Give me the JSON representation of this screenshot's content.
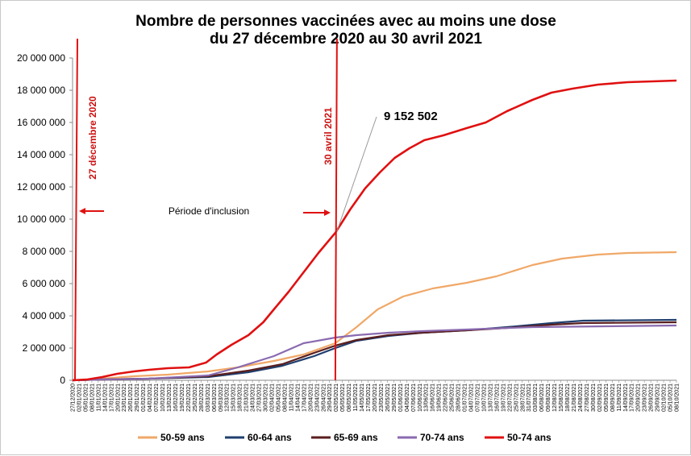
{
  "chart_data": {
    "type": "line",
    "title_line1": "Nombre de personnes vaccinées avec au moins une dose",
    "title_line2": "du 27 décembre 2020 au 30 avril 2021",
    "xlabel": "",
    "ylabel": "",
    "ylim": [
      0,
      20000000
    ],
    "yticks": [
      0,
      2000000,
      4000000,
      6000000,
      8000000,
      10000000,
      12000000,
      14000000,
      16000000,
      18000000,
      20000000
    ],
    "ytick_labels": [
      "0",
      "2 000 000",
      "4 000 000",
      "6 000 000",
      "8 000 000",
      "10 000 000",
      "12 000 000",
      "14 000 000",
      "16 000 000",
      "18 000 000",
      "20 000 000"
    ],
    "x_start": "2020-12-27",
    "x_end": "2021-10-08",
    "x_tick_labels": [
      "27/12/2020",
      "02/01/2021",
      "05/01/2021",
      "08/01/2021",
      "11/01/2021",
      "14/01/2021",
      "17/01/2021",
      "20/01/2021",
      "23/01/2021",
      "26/01/2021",
      "29/01/2021",
      "01/02/2021",
      "04/02/2021",
      "07/02/2021",
      "10/02/2021",
      "13/02/2021",
      "16/02/2021",
      "19/02/2021",
      "22/02/2021",
      "25/02/2021",
      "28/02/2021",
      "03/03/2021",
      "06/03/2021",
      "09/03/2021",
      "12/03/2021",
      "15/03/2021",
      "18/03/2021",
      "21/03/2021",
      "24/03/2021",
      "27/03/2021",
      "30/03/2021",
      "02/04/2021",
      "05/04/2021",
      "08/04/2021",
      "11/04/2021",
      "14/04/2021",
      "17/04/2021",
      "20/04/2021",
      "23/04/2021",
      "26/04/2021",
      "29/04/2021",
      "02/05/2021",
      "05/05/2021",
      "08/05/2021",
      "11/05/2021",
      "14/05/2021",
      "17/05/2021",
      "20/05/2021",
      "23/05/2021",
      "26/05/2021",
      "29/05/2021",
      "01/06/2021",
      "04/06/2021",
      "07/06/2021",
      "10/06/2021",
      "13/06/2021",
      "16/06/2021",
      "19/06/2021",
      "22/06/2021",
      "25/06/2021",
      "28/06/2021",
      "01/07/2021",
      "04/07/2021",
      "07/07/2021",
      "10/07/2021",
      "13/07/2021",
      "16/07/2021",
      "19/07/2021",
      "22/07/2021",
      "25/07/2021",
      "28/07/2021",
      "31/07/2021",
      "03/08/2021",
      "06/08/2021",
      "09/08/2021",
      "12/08/2021",
      "15/08/2021",
      "18/08/2021",
      "21/08/2021",
      "24/08/2021",
      "27/08/2021",
      "30/08/2021",
      "02/09/2021",
      "05/09/2021",
      "08/09/2021",
      "11/09/2021",
      "14/09/2021",
      "17/09/2021",
      "20/09/2021",
      "23/09/2021",
      "26/09/2021",
      "29/09/2021",
      "02/10/2021",
      "05/10/2021",
      "08/10/2021"
    ],
    "grid": false,
    "legend_position": "bottom",
    "series": [
      {
        "name": "50-59 ans",
        "color": "#f0a868",
        "x": [
          "2020-12-27",
          "2021-01-10",
          "2021-01-25",
          "2021-02-10",
          "2021-03-01",
          "2021-03-15",
          "2021-04-01",
          "2021-04-15",
          "2021-04-30",
          "2021-05-10",
          "2021-05-20",
          "2021-06-01",
          "2021-06-15",
          "2021-07-01",
          "2021-07-15",
          "2021-08-01",
          "2021-08-15",
          "2021-09-01",
          "2021-09-15",
          "2021-10-08"
        ],
        "y": [
          0,
          100000,
          250000,
          350000,
          550000,
          800000,
          1200000,
          1600000,
          2300000,
          3300000,
          4400000,
          5200000,
          5700000,
          6050000,
          6450000,
          7150000,
          7550000,
          7800000,
          7900000,
          7950000
        ]
      },
      {
        "name": "60-64 ans",
        "color": "#1f3f6e",
        "x": [
          "2020-12-27",
          "2021-01-10",
          "2021-02-01",
          "2021-03-01",
          "2021-03-20",
          "2021-04-05",
          "2021-04-20",
          "2021-04-30",
          "2021-05-10",
          "2021-05-25",
          "2021-06-10",
          "2021-07-01",
          "2021-07-20",
          "2021-08-10",
          "2021-08-25",
          "2021-10-08"
        ],
        "y": [
          0,
          50000,
          100000,
          200000,
          500000,
          900000,
          1500000,
          2000000,
          2450000,
          2750000,
          2950000,
          3100000,
          3300000,
          3550000,
          3700000,
          3750000
        ]
      },
      {
        "name": "65-69 ans",
        "color": "#5a1e1e",
        "x": [
          "2020-12-27",
          "2021-01-10",
          "2021-02-01",
          "2021-03-01",
          "2021-03-20",
          "2021-04-05",
          "2021-04-20",
          "2021-04-30",
          "2021-05-10",
          "2021-05-25",
          "2021-06-10",
          "2021-07-01",
          "2021-07-20",
          "2021-08-10",
          "2021-08-25",
          "2021-10-08"
        ],
        "y": [
          0,
          50000,
          100000,
          250000,
          600000,
          1000000,
          1700000,
          2150000,
          2500000,
          2800000,
          2950000,
          3100000,
          3250000,
          3450000,
          3550000,
          3600000
        ]
      },
      {
        "name": "70-74 ans",
        "color": "#8a6ab0",
        "x": [
          "2020-12-27",
          "2021-01-10",
          "2021-02-01",
          "2021-03-01",
          "2021-03-15",
          "2021-04-01",
          "2021-04-15",
          "2021-04-30",
          "2021-05-10",
          "2021-05-25",
          "2021-06-10",
          "2021-07-01",
          "2021-08-01",
          "2021-10-08"
        ],
        "y": [
          0,
          50000,
          100000,
          300000,
          800000,
          1500000,
          2300000,
          2650000,
          2800000,
          2950000,
          3050000,
          3150000,
          3300000,
          3400000
        ]
      },
      {
        "name": "50-74 ans",
        "color": "#e01010",
        "x": [
          "2020-12-27",
          "2021-01-03",
          "2021-01-10",
          "2021-01-17",
          "2021-01-25",
          "2021-02-01",
          "2021-02-10",
          "2021-02-20",
          "2021-02-28",
          "2021-03-05",
          "2021-03-12",
          "2021-03-20",
          "2021-03-27",
          "2021-04-01",
          "2021-04-08",
          "2021-04-15",
          "2021-04-22",
          "2021-04-30",
          "2021-05-07",
          "2021-05-14",
          "2021-05-21",
          "2021-05-28",
          "2021-06-04",
          "2021-06-11",
          "2021-06-20",
          "2021-07-01",
          "2021-07-10",
          "2021-07-20",
          "2021-08-01",
          "2021-08-10",
          "2021-08-20",
          "2021-09-01",
          "2021-09-15",
          "2021-10-08"
        ],
        "y": [
          0,
          50000,
          200000,
          400000,
          550000,
          650000,
          750000,
          800000,
          1100000,
          1600000,
          2200000,
          2800000,
          3600000,
          4400000,
          5500000,
          6700000,
          7900000,
          9152502,
          10600000,
          11900000,
          12900000,
          13800000,
          14400000,
          14900000,
          15200000,
          15650000,
          16000000,
          16700000,
          17400000,
          17850000,
          18100000,
          18350000,
          18500000,
          18600000
        ]
      }
    ],
    "annotations": {
      "vline_start_label": "27 décembre 2020",
      "vline_end_label": "30 avril 2021",
      "vline_start_date": "2020-12-27",
      "vline_end_date": "2021-04-30",
      "period_label": "Période d'inclusion",
      "callout_value": "9 152 502",
      "callout_date": "2021-04-30",
      "callout_y": 9152502
    }
  }
}
